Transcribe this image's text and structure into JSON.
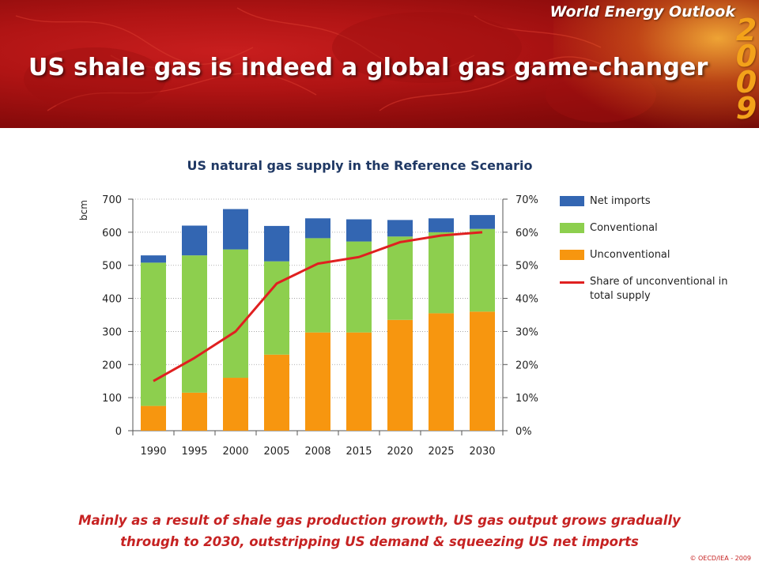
{
  "header": {
    "brand": "World Energy Outlook",
    "year_digits": [
      "2",
      "0",
      "0",
      "9"
    ],
    "title": "US shale gas is indeed a global gas game-changer"
  },
  "chart_data": {
    "type": "bar",
    "title": "US natural gas supply in the Reference Scenario",
    "stacked": true,
    "categories": [
      "1990",
      "1995",
      "2000",
      "2005",
      "2008",
      "2015",
      "2020",
      "2025",
      "2030"
    ],
    "ylabel": "bcm",
    "ylim": [
      0,
      700
    ],
    "yticks": [
      "0",
      "100",
      "200",
      "300",
      "400",
      "500",
      "600",
      "700"
    ],
    "y2lim": [
      0,
      70
    ],
    "y2ticks": [
      "0%",
      "10%",
      "20%",
      "30%",
      "40%",
      "50%",
      "60%",
      "70%"
    ],
    "series": [
      {
        "name": "Unconventional",
        "color": "#f7960f",
        "values": [
          75,
          115,
          160,
          230,
          297,
          297,
          335,
          355,
          360
        ]
      },
      {
        "name": "Conventional",
        "color": "#8dcf4e",
        "values": [
          433,
          415,
          388,
          282,
          285,
          275,
          252,
          245,
          250
        ]
      },
      {
        "name": "Net imports",
        "color": "#3366b2",
        "values": [
          22,
          90,
          122,
          107,
          60,
          67,
          50,
          42,
          42
        ]
      },
      {
        "name": "Share of unconventional in total supply",
        "type": "line",
        "axis": "right",
        "color": "#e02020",
        "values": [
          15,
          22,
          30,
          44.5,
          50.5,
          52.5,
          57,
          59,
          60
        ]
      }
    ],
    "legend_position": "right",
    "gridlines": true
  },
  "caption": {
    "line1": "Mainly as a result of shale gas production growth, US gas output grows gradually",
    "line2": "through to 2030, outstripping US demand & squeezing US net imports"
  },
  "copyright": "© OECD/IEA - 2009"
}
